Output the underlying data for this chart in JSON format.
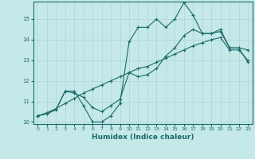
{
  "xlabel": "Humidex (Indice chaleur)",
  "background_color": "#c5e8e8",
  "grid_color": "#b0d5d5",
  "line_color": "#1a6b6b",
  "xlim": [
    -0.5,
    23.5
  ],
  "ylim": [
    9.9,
    15.85
  ],
  "yticks": [
    10,
    11,
    12,
    13,
    14,
    15
  ],
  "xticks": [
    0,
    1,
    2,
    3,
    4,
    5,
    6,
    7,
    8,
    9,
    10,
    11,
    12,
    13,
    14,
    15,
    16,
    17,
    18,
    19,
    20,
    21,
    22,
    23
  ],
  "line1_x": [
    0,
    1,
    2,
    3,
    4,
    5,
    6,
    7,
    8,
    9,
    10,
    11,
    12,
    13,
    14,
    15,
    16,
    17,
    18,
    19,
    20,
    21,
    22,
    23
  ],
  "line1_y": [
    10.3,
    10.4,
    10.6,
    11.5,
    11.5,
    10.8,
    10.0,
    10.0,
    10.3,
    10.9,
    13.9,
    14.6,
    14.6,
    15.0,
    14.6,
    15.0,
    15.8,
    15.2,
    14.3,
    14.3,
    14.4,
    13.6,
    13.6,
    13.5
  ],
  "line2_x": [
    0,
    1,
    2,
    3,
    4,
    5,
    6,
    7,
    8,
    9,
    10,
    11,
    12,
    13,
    14,
    15,
    16,
    17,
    18,
    19,
    20,
    21,
    22,
    23
  ],
  "line2_y": [
    10.3,
    10.4,
    10.6,
    11.5,
    11.4,
    11.2,
    10.7,
    10.5,
    10.8,
    11.1,
    12.4,
    12.2,
    12.3,
    12.6,
    13.2,
    13.6,
    14.2,
    14.5,
    14.3,
    14.3,
    14.5,
    13.6,
    13.6,
    12.9
  ],
  "line3_x": [
    0,
    1,
    2,
    3,
    4,
    5,
    6,
    7,
    8,
    9,
    10,
    11,
    12,
    13,
    14,
    15,
    16,
    17,
    18,
    19,
    20,
    21,
    22,
    23
  ],
  "line3_y": [
    10.3,
    10.45,
    10.65,
    10.9,
    11.15,
    11.4,
    11.6,
    11.8,
    12.0,
    12.2,
    12.4,
    12.6,
    12.7,
    12.9,
    13.1,
    13.3,
    13.5,
    13.7,
    13.85,
    14.0,
    14.1,
    13.5,
    13.5,
    13.0
  ]
}
